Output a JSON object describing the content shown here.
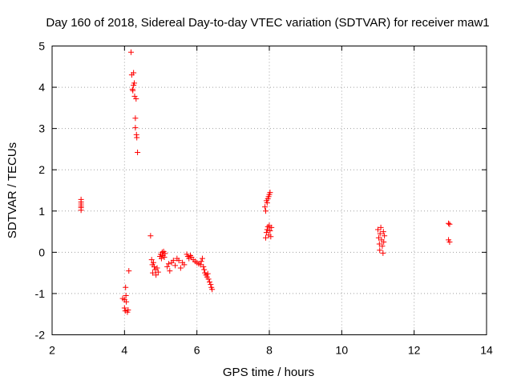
{
  "chart_data": {
    "type": "scatter",
    "title": "Day 160 of 2018, Sidereal Day-to-day VTEC variation (SDTVAR) for receiver maw1",
    "xlabel": "GPS time / hours",
    "ylabel": "SDTVAR / TECUs",
    "xlim": [
      2,
      14
    ],
    "ylim": [
      -2,
      5
    ],
    "xticks": [
      "2",
      "4",
      "6",
      "8",
      "10",
      "12",
      "14"
    ],
    "yticks": [
      "-2",
      "-1",
      "0",
      "1",
      "2",
      "3",
      "4",
      "5"
    ],
    "grid": true,
    "marker": "plus",
    "color": "#ff0000",
    "series": [
      {
        "name": "SDTVAR",
        "points": [
          [
            2.8,
            1.28
          ],
          [
            2.8,
            1.22
          ],
          [
            2.8,
            1.17
          ],
          [
            2.8,
            1.12
          ],
          [
            2.8,
            1.08
          ],
          [
            2.8,
            1.02
          ],
          [
            3.95,
            -1.12
          ],
          [
            4.0,
            -1.15
          ],
          [
            4.0,
            -1.35
          ],
          [
            4.02,
            -1.42
          ],
          [
            4.03,
            -0.85
          ],
          [
            4.04,
            -1.05
          ],
          [
            4.05,
            -1.2
          ],
          [
            4.08,
            -1.45
          ],
          [
            4.1,
            -1.4
          ],
          [
            4.12,
            -0.45
          ],
          [
            4.18,
            4.85
          ],
          [
            4.2,
            4.3
          ],
          [
            4.22,
            3.95
          ],
          [
            4.23,
            3.92
          ],
          [
            4.25,
            4.35
          ],
          [
            4.25,
            4.05
          ],
          [
            4.27,
            4.1
          ],
          [
            4.28,
            3.78
          ],
          [
            4.3,
            3.25
          ],
          [
            4.3,
            3.02
          ],
          [
            4.32,
            3.72
          ],
          [
            4.33,
            2.85
          ],
          [
            4.34,
            2.78
          ],
          [
            4.36,
            2.42
          ],
          [
            4.72,
            0.4
          ],
          [
            4.75,
            -0.18
          ],
          [
            4.77,
            -0.3
          ],
          [
            4.78,
            -0.5
          ],
          [
            4.8,
            -0.25
          ],
          [
            4.82,
            -0.35
          ],
          [
            4.85,
            -0.42
          ],
          [
            4.87,
            -0.55
          ],
          [
            4.9,
            -0.38
          ],
          [
            4.93,
            -0.48
          ],
          [
            4.98,
            -0.1
          ],
          [
            5.0,
            -0.05
          ],
          [
            5.02,
            -0.15
          ],
          [
            5.04,
            0.0
          ],
          [
            5.06,
            -0.08
          ],
          [
            5.08,
            0.02
          ],
          [
            5.1,
            -0.12
          ],
          [
            5.12,
            -0.03
          ],
          [
            5.18,
            -0.35
          ],
          [
            5.22,
            -0.28
          ],
          [
            5.25,
            -0.45
          ],
          [
            5.3,
            -0.25
          ],
          [
            5.35,
            -0.2
          ],
          [
            5.4,
            -0.32
          ],
          [
            5.45,
            -0.15
          ],
          [
            5.5,
            -0.2
          ],
          [
            5.55,
            -0.38
          ],
          [
            5.6,
            -0.25
          ],
          [
            5.65,
            -0.3
          ],
          [
            5.72,
            -0.05
          ],
          [
            5.75,
            -0.1
          ],
          [
            5.78,
            -0.15
          ],
          [
            5.82,
            -0.08
          ],
          [
            5.85,
            -0.12
          ],
          [
            5.9,
            -0.18
          ],
          [
            5.95,
            -0.22
          ],
          [
            6.0,
            -0.25
          ],
          [
            6.05,
            -0.28
          ],
          [
            6.1,
            -0.3
          ],
          [
            6.12,
            -0.22
          ],
          [
            6.15,
            -0.15
          ],
          [
            6.18,
            -0.35
          ],
          [
            6.2,
            -0.42
          ],
          [
            6.22,
            -0.5
          ],
          [
            6.25,
            -0.55
          ],
          [
            6.28,
            -0.6
          ],
          [
            6.3,
            -0.52
          ],
          [
            6.32,
            -0.65
          ],
          [
            6.35,
            -0.72
          ],
          [
            6.38,
            -0.78
          ],
          [
            6.4,
            -0.85
          ],
          [
            6.42,
            -0.9
          ],
          [
            7.88,
            1.1
          ],
          [
            7.9,
            1.0
          ],
          [
            7.92,
            1.25
          ],
          [
            7.94,
            1.2
          ],
          [
            7.96,
            1.3
          ],
          [
            7.98,
            1.35
          ],
          [
            8.0,
            1.4
          ],
          [
            8.02,
            1.45
          ],
          [
            7.9,
            0.35
          ],
          [
            7.92,
            0.48
          ],
          [
            7.94,
            0.55
          ],
          [
            7.96,
            0.62
          ],
          [
            7.98,
            0.42
          ],
          [
            8.0,
            0.65
          ],
          [
            8.02,
            0.52
          ],
          [
            8.04,
            0.38
          ],
          [
            8.06,
            0.6
          ],
          [
            11.0,
            0.55
          ],
          [
            11.02,
            0.35
          ],
          [
            11.04,
            0.2
          ],
          [
            11.05,
            0.05
          ],
          [
            11.06,
            0.45
          ],
          [
            11.08,
            0.6
          ],
          [
            11.1,
            0.3
          ],
          [
            11.12,
            0.15
          ],
          [
            11.14,
            -0.02
          ],
          [
            11.15,
            0.5
          ],
          [
            11.16,
            0.25
          ],
          [
            11.18,
            0.4
          ],
          [
            12.95,
            0.7
          ],
          [
            12.98,
            0.68
          ],
          [
            12.95,
            0.3
          ],
          [
            12.98,
            0.25
          ]
        ]
      }
    ]
  }
}
